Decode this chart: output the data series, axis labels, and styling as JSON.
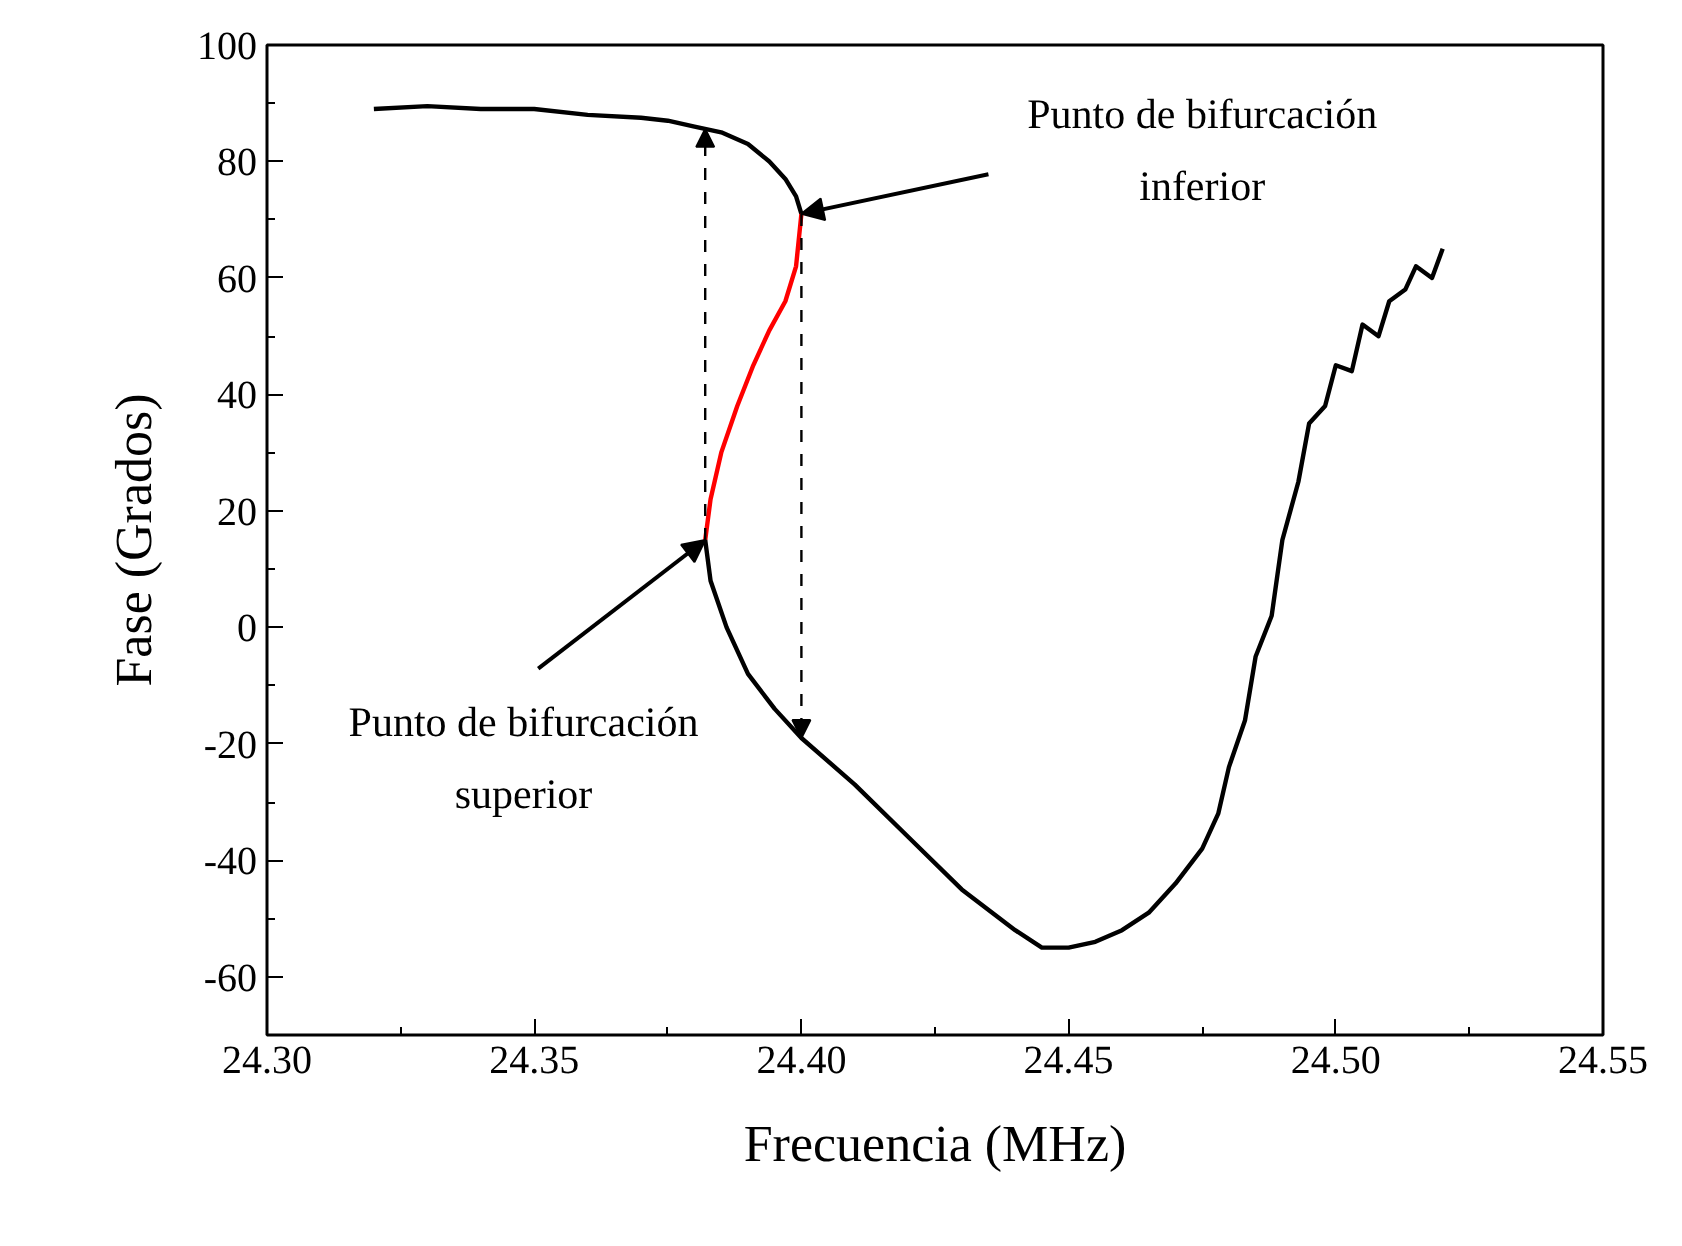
{
  "chart_data": {
    "type": "line",
    "xlabel": "Frecuencia (MHz)",
    "ylabel": "Fase (Grados)",
    "xlim": [
      24.3,
      24.55
    ],
    "ylim": [
      -70,
      100
    ],
    "xticks": [
      {
        "value": 24.3,
        "label": "24.30"
      },
      {
        "value": 24.35,
        "label": "24.35"
      },
      {
        "value": 24.4,
        "label": "24.40"
      },
      {
        "value": 24.45,
        "label": "24.45"
      },
      {
        "value": 24.5,
        "label": "24.50"
      },
      {
        "value": 24.55,
        "label": "24.55"
      }
    ],
    "yticks": [
      -60,
      -40,
      -20,
      0,
      20,
      40,
      60,
      80,
      100
    ],
    "grid": false,
    "marker": "none",
    "line_style": "solid",
    "series": [
      {
        "color": "#000000",
        "x": [
          24.32,
          24.33,
          24.34,
          24.35,
          24.36,
          24.37,
          24.375,
          24.38,
          24.385,
          24.39,
          24.394,
          24.397,
          24.399,
          24.4
        ],
        "values": [
          89,
          89.5,
          89,
          89,
          88,
          87.5,
          87,
          86,
          85,
          83,
          80,
          77,
          74,
          71
        ]
      },
      {
        "color": "#ff0000",
        "x": [
          24.382,
          24.383,
          24.385,
          24.388,
          24.391,
          24.394,
          24.397,
          24.399,
          24.4
        ],
        "values": [
          15,
          22,
          30,
          38,
          45,
          51,
          56,
          62,
          71
        ]
      },
      {
        "color": "#000000",
        "x": [
          24.382,
          24.383,
          24.386,
          24.39,
          24.395,
          24.4,
          24.41,
          24.42,
          24.43,
          24.44,
          24.445,
          24.45,
          24.455,
          24.46,
          24.465,
          24.47,
          24.475,
          24.478,
          24.48,
          24.483,
          24.485,
          24.488,
          24.49,
          24.493,
          24.495,
          24.498,
          24.5,
          24.503,
          24.505,
          24.508,
          24.51,
          24.513,
          24.515,
          24.518,
          24.52
        ],
        "values": [
          15,
          8,
          0,
          -8,
          -14,
          -19,
          -27,
          -36,
          -45,
          -52,
          -55,
          -55,
          -54,
          -52,
          -49,
          -44,
          -38,
          -32,
          -24,
          -16,
          -5,
          2,
          15,
          25,
          35,
          38,
          45,
          44,
          52,
          50,
          56,
          58,
          62,
          60,
          65
        ]
      }
    ],
    "annotations": [
      {
        "text": "Punto de bifurcación inferior",
        "x": 24.4,
        "y": 71
      },
      {
        "text": "Punto de bifurcación superior",
        "x": 24.382,
        "y": 15
      }
    ]
  }
}
